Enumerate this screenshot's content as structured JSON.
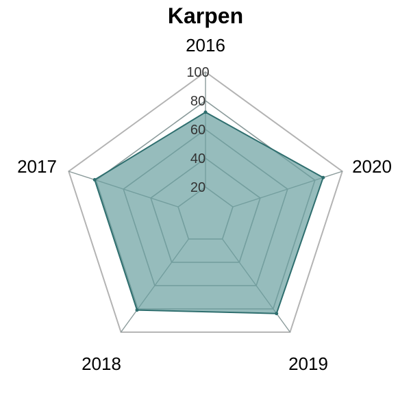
{
  "chart_data": {
    "type": "radar",
    "title": "Karpen",
    "axes": [
      "2016",
      "2020",
      "2019",
      "2018",
      "2017"
    ],
    "values": [
      72,
      86,
      84,
      81,
      81
    ],
    "rlim": [
      0,
      100
    ],
    "ticks": [
      "20",
      "40",
      "60",
      "80",
      "100"
    ],
    "grid": true,
    "colors": {
      "fill": "#6a9fa0",
      "stroke": "#2e6e6e",
      "grid_inner": "#8a9a9a",
      "grid_outer": "#b3b3b3"
    }
  }
}
